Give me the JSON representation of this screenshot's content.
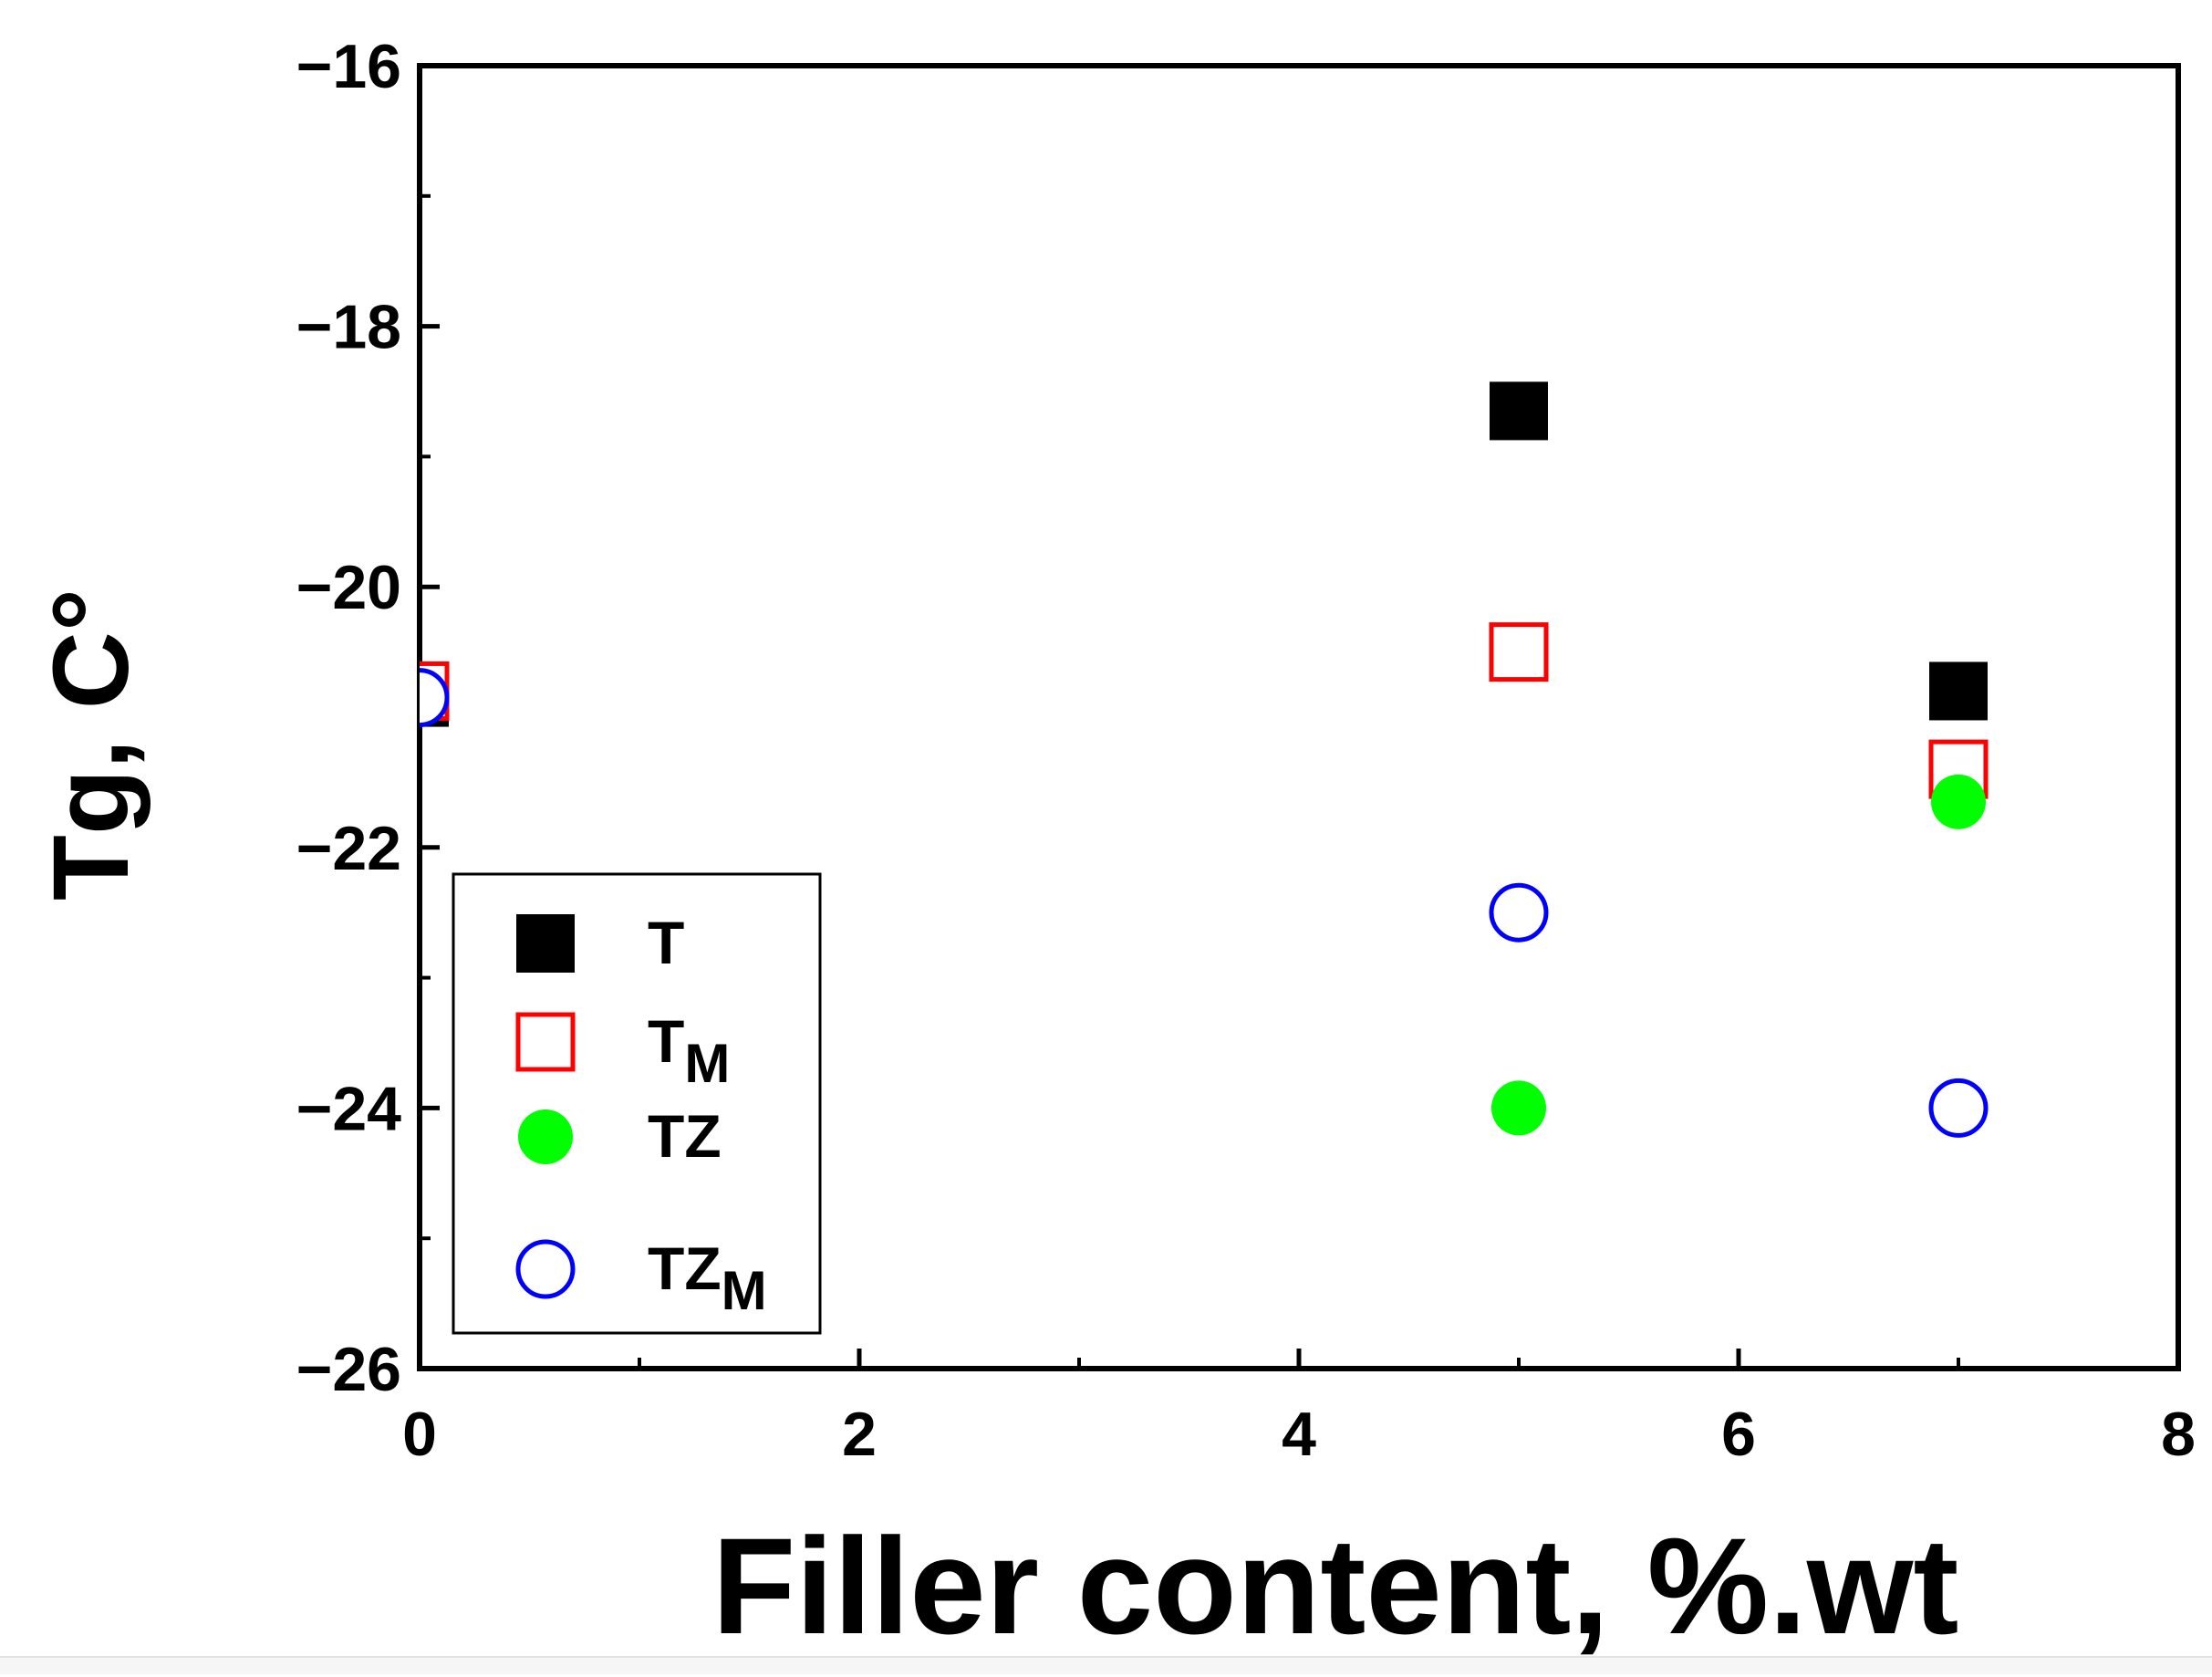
{
  "chart_data": {
    "type": "scatter",
    "title": "",
    "xlabel": "Filler content, %.wt",
    "ylabel": "Tg, C°",
    "xlim": [
      0,
      8
    ],
    "ylim": [
      -26,
      -16
    ],
    "xticks": [
      0,
      2,
      4,
      6,
      8
    ],
    "yticks": [
      -26,
      -24,
      -22,
      -20,
      -18,
      -16
    ],
    "x_tick_labels": [
      "0",
      "2",
      "4",
      "6",
      "8"
    ],
    "y_tick_labels": [
      "−26",
      "−24",
      "−22",
      "−20",
      "−18",
      "−16"
    ],
    "grid": false,
    "legend_position": "bottom-left",
    "series": [
      {
        "name": "T",
        "marker": "filled-square",
        "color": "#000000",
        "points": [
          {
            "x": 0,
            "y": -20.85
          },
          {
            "x": 5,
            "y": -18.65
          },
          {
            "x": 7,
            "y": -20.8
          }
        ]
      },
      {
        "name": "TM",
        "name_main": "T",
        "name_sub": "M",
        "marker": "open-square",
        "color": "#ff0000",
        "points": [
          {
            "x": 0,
            "y": -20.8
          },
          {
            "x": 5,
            "y": -20.5
          },
          {
            "x": 7,
            "y": -21.4
          }
        ]
      },
      {
        "name": "TZ",
        "marker": "filled-circle",
        "color": "#00ff00",
        "points": [
          {
            "x": 0,
            "y": -20.85
          },
          {
            "x": 5,
            "y": -24.0
          },
          {
            "x": 7,
            "y": -21.65
          }
        ]
      },
      {
        "name": "TZM",
        "name_main": "TZ",
        "name_sub": "M",
        "marker": "open-circle",
        "color": "#0000ff",
        "points": [
          {
            "x": 0,
            "y": -20.85
          },
          {
            "x": 5,
            "y": -22.5
          },
          {
            "x": 7,
            "y": -24.0
          }
        ]
      }
    ]
  }
}
